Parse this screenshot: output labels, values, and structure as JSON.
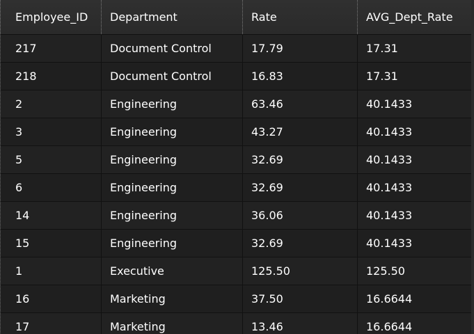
{
  "table": {
    "columns": [
      "Employee_ID",
      "Department",
      "Rate",
      "AVG_Dept_Rate"
    ],
    "rows": [
      [
        "217",
        "Document Control",
        "17.79",
        "17.31"
      ],
      [
        "218",
        "Document Control",
        "16.83",
        "17.31"
      ],
      [
        "2",
        "Engineering",
        "63.46",
        "40.1433"
      ],
      [
        "3",
        "Engineering",
        "43.27",
        "40.1433"
      ],
      [
        "5",
        "Engineering",
        "32.69",
        "40.1433"
      ],
      [
        "6",
        "Engineering",
        "32.69",
        "40.1433"
      ],
      [
        "14",
        "Engineering",
        "36.06",
        "40.1433"
      ],
      [
        "15",
        "Engineering",
        "32.69",
        "40.1433"
      ],
      [
        "1",
        "Executive",
        "125.50",
        "125.50"
      ],
      [
        "16",
        "Marketing",
        "37.50",
        "16.6644"
      ],
      [
        "17",
        "Marketing",
        "13.46",
        "16.6644"
      ]
    ]
  },
  "colors": {
    "background": "#1e1e1e",
    "header_background": "#2e2e2e",
    "text": "#ffffff",
    "grid_line": "#111111"
  }
}
